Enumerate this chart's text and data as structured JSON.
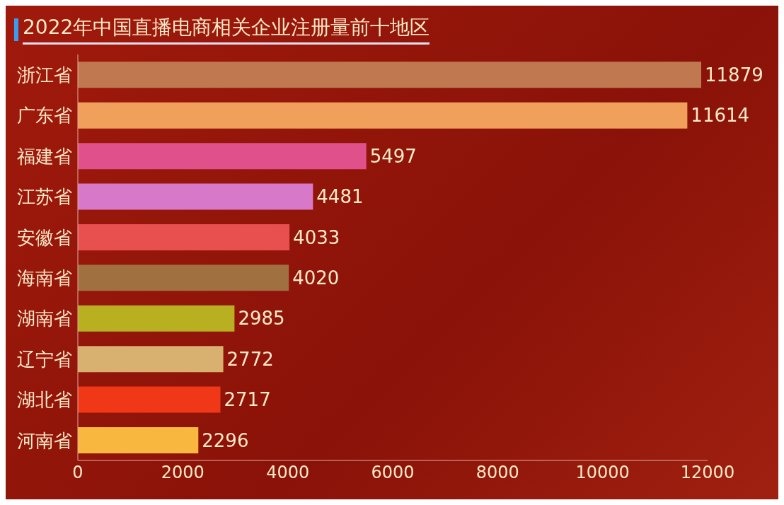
{
  "chart_data": {
    "type": "bar",
    "orientation": "horizontal",
    "title": "2022年中国直播电商相关企业注册量前十地区",
    "categories": [
      "浙江省",
      "广东省",
      "福建省",
      "江苏省",
      "安徽省",
      "海南省",
      "湖南省",
      "辽宁省",
      "湖北省",
      "河南省"
    ],
    "values": [
      11879,
      11614,
      5497,
      4481,
      4033,
      4020,
      2985,
      2772,
      2717,
      2296
    ],
    "colors": [
      "#c07850",
      "#f0a05a",
      "#e0508a",
      "#d878c8",
      "#e85050",
      "#a07040",
      "#b8b020",
      "#d8b070",
      "#f03818",
      "#f8b840"
    ],
    "xlim": [
      0,
      12000
    ],
    "xticks": [
      0,
      2000,
      4000,
      6000,
      8000,
      10000,
      12000
    ],
    "data_labels": true,
    "grid": false
  }
}
